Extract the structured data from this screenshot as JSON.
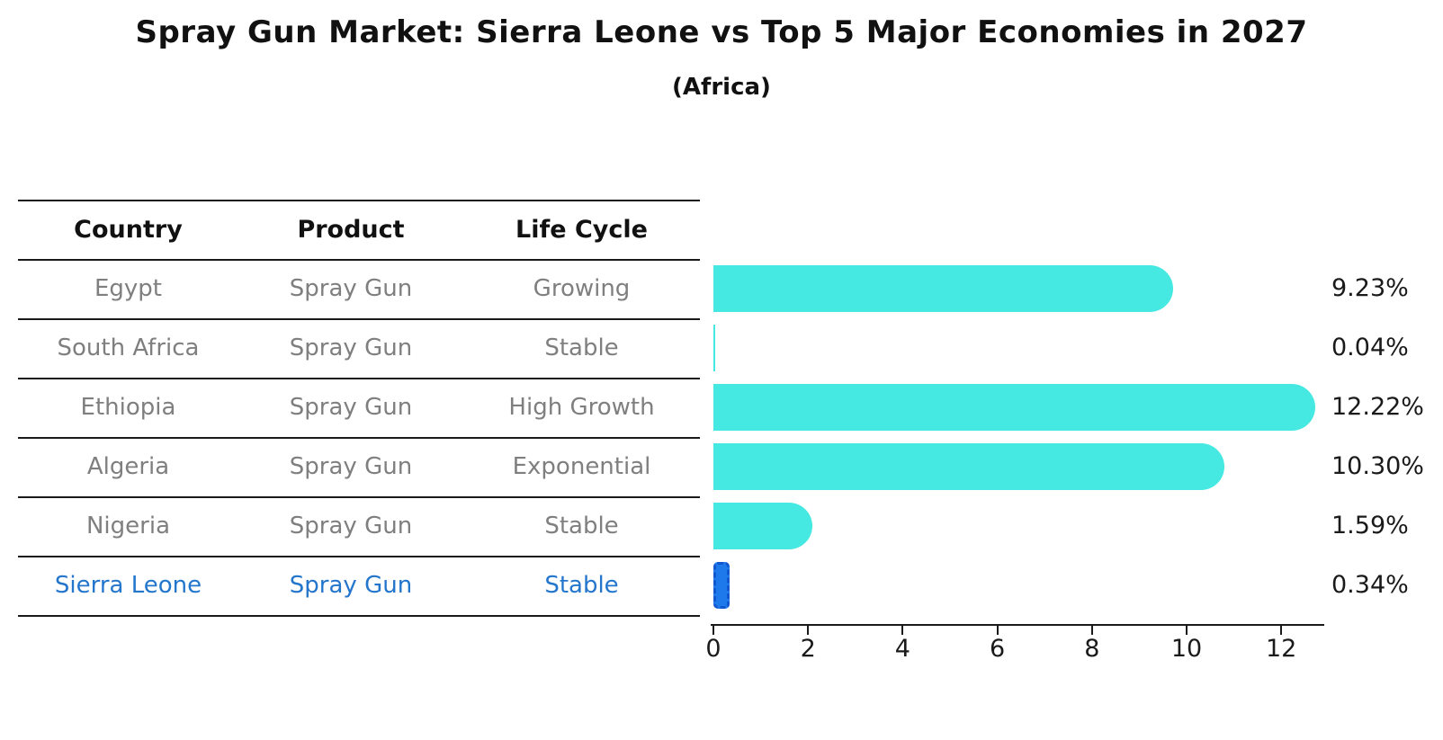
{
  "header": {
    "title": "Spray Gun Market: Sierra Leone vs Top 5 Major Economies in 2027",
    "subtitle": "(Africa)"
  },
  "table": {
    "columns": [
      "Country",
      "Product",
      "Life Cycle"
    ],
    "rows": [
      {
        "country": "Egypt",
        "product": "Spray Gun",
        "life_cycle": "Growing",
        "highlight": false
      },
      {
        "country": "South Africa",
        "product": "Spray Gun",
        "life_cycle": "Stable",
        "highlight": false
      },
      {
        "country": "Ethiopia",
        "product": "Spray Gun",
        "life_cycle": "High Growth",
        "highlight": false
      },
      {
        "country": "Algeria",
        "product": "Spray Gun",
        "life_cycle": "Exponential",
        "highlight": false
      },
      {
        "country": "Nigeria",
        "product": "Spray Gun",
        "life_cycle": "Stable",
        "highlight": false
      },
      {
        "country": "Sierra Leone",
        "product": "Spray Gun",
        "life_cycle": "Stable",
        "highlight": true
      }
    ]
  },
  "chart_data": {
    "type": "bar",
    "orientation": "horizontal",
    "title": "Spray Gun Market: Sierra Leone vs Top 5 Major Economies in 2027",
    "subtitle": "(Africa)",
    "categories": [
      "Egypt",
      "South Africa",
      "Ethiopia",
      "Algeria",
      "Nigeria",
      "Sierra Leone"
    ],
    "values": [
      9.23,
      0.04,
      12.22,
      10.3,
      1.59,
      0.34
    ],
    "labels": [
      "9.23%",
      "0.04%",
      "12.22%",
      "10.30%",
      "1.59%",
      "0.34%"
    ],
    "x_ticks": [
      0,
      2,
      4,
      6,
      8,
      10,
      12
    ],
    "xlim": [
      0,
      12.9
    ],
    "grid": false,
    "legend": false,
    "highlight_index": 5,
    "bar_color": "#46E8E2",
    "highlight_color": "#1E7AEB",
    "highlight_edge_color": "#1157D0",
    "text_color": "#1a1a1a",
    "muted_text_color": "#7f7f7f",
    "highlight_text_color": "#2476CC"
  }
}
